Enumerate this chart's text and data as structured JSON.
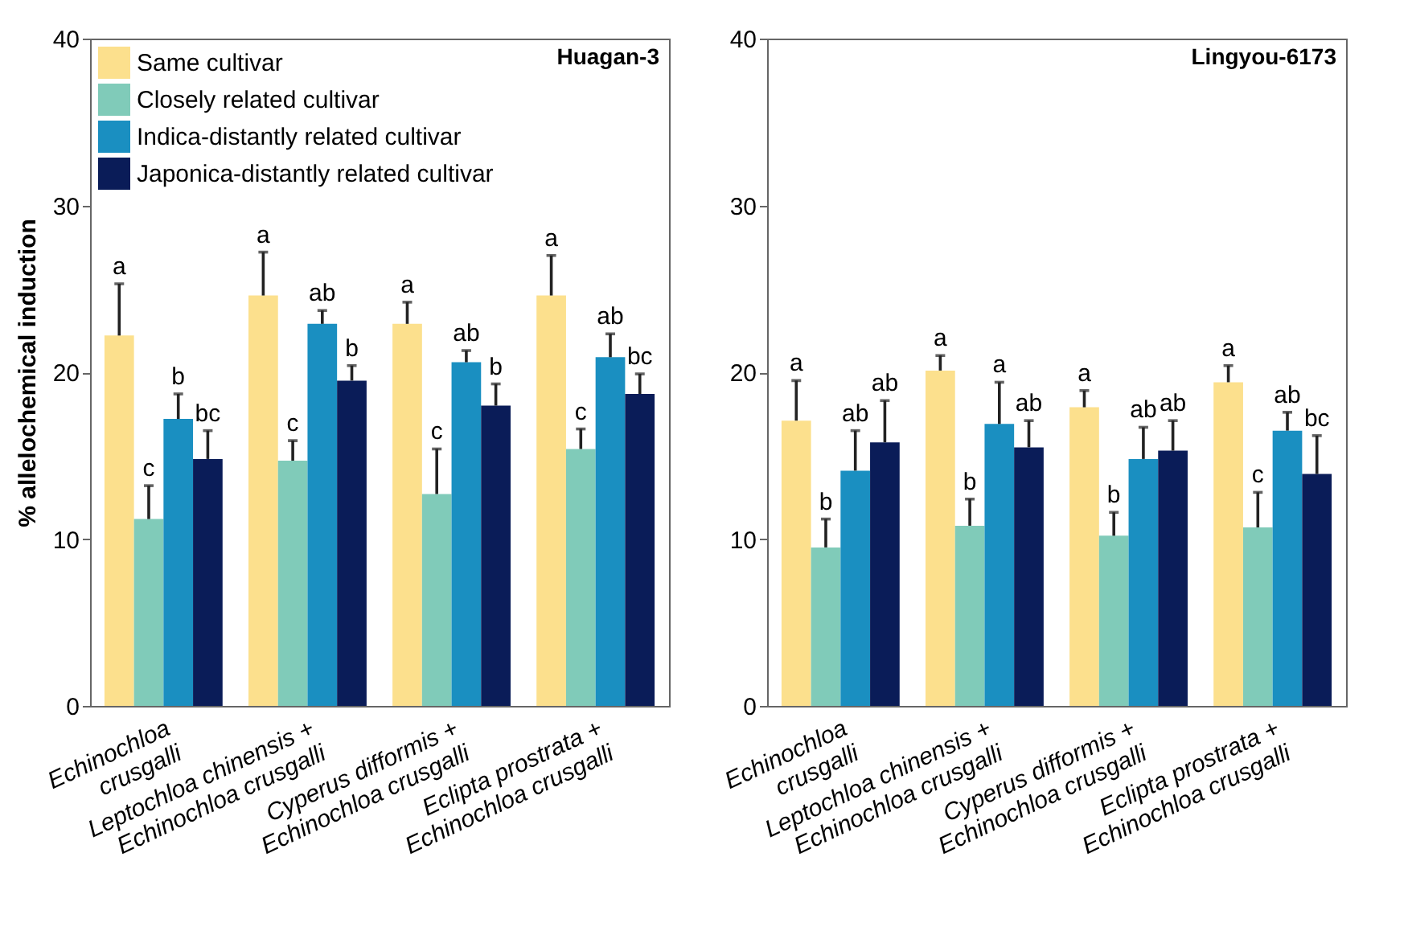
{
  "chart_data": [
    {
      "type": "bar",
      "title": "Huagan-3",
      "ylabel": "% allelochemical induction",
      "categories": [
        "Echinochloa\ncrusgalli",
        "Leptochloa chinensis +\nEchinochloa crusgalli",
        "Cyperus difformis +\nEchinochloa crusgalli",
        "Eclipta prostrata +\nEchinochloa crusgalli"
      ],
      "ylim": [
        0,
        40
      ],
      "yticks": [
        0,
        10,
        20,
        30,
        40
      ],
      "grid": false,
      "legend": "top left",
      "series": [
        {
          "name": "Same cultivar",
          "color": "#fce08d",
          "values": [
            22.2,
            24.6,
            22.9,
            24.6
          ],
          "errors": [
            [
              22.2,
              25.3
            ],
            [
              24.6,
              27.2
            ],
            [
              22.9,
              24.2
            ],
            [
              24.6,
              27.0
            ]
          ],
          "value_labels": [
            "a",
            "a",
            "a",
            "a"
          ]
        },
        {
          "name": "Closely related cultivar",
          "color": "#80cbb9",
          "values": [
            11.2,
            14.7,
            12.7,
            15.4
          ],
          "errors": [
            [
              11.2,
              13.2
            ],
            [
              14.7,
              15.9
            ],
            [
              12.7,
              15.4
            ],
            [
              15.4,
              16.6
            ]
          ],
          "value_labels": [
            "c",
            "c",
            "c",
            "c"
          ]
        },
        {
          "name": "Indica-distantly related cultivar",
          "color": "#1a8fc1",
          "values": [
            17.2,
            22.9,
            20.6,
            20.9
          ],
          "errors": [
            [
              17.2,
              18.7
            ],
            [
              22.9,
              23.7
            ],
            [
              20.6,
              21.3
            ],
            [
              20.9,
              22.3
            ]
          ],
          "value_labels": [
            "b",
            "ab",
            "ab",
            "ab"
          ]
        },
        {
          "name": "Japonica-distantly related cultivar",
          "color": "#0a1c58",
          "values": [
            14.8,
            19.5,
            18.0,
            18.7
          ],
          "errors": [
            [
              14.8,
              16.5
            ],
            [
              19.5,
              20.4
            ],
            [
              18.0,
              19.3
            ],
            [
              18.7,
              19.9
            ]
          ],
          "value_labels": [
            "bc",
            "b",
            "b",
            "bc"
          ]
        }
      ]
    },
    {
      "type": "bar",
      "title": "Lingyou-6173",
      "categories": [
        "Echinochloa\ncrusgalli",
        "Leptochloa chinensis +\nEchinochloa crusgalli",
        "Cyperus difformis +\nEchinochloa crusgalli",
        "Eclipta prostrata +\nEchinochloa crusgalli"
      ],
      "ylim": [
        0,
        40
      ],
      "yticks": [
        0,
        10,
        20,
        30,
        40
      ],
      "grid": false,
      "series": [
        {
          "color": "#fce08d",
          "values": [
            17.1,
            20.1,
            17.9,
            19.4
          ],
          "errors": [
            [
              17.1,
              19.5
            ],
            [
              20.1,
              21.0
            ],
            [
              17.9,
              18.9
            ],
            [
              19.4,
              20.4
            ]
          ],
          "value_labels": [
            "a",
            "a",
            "a",
            "a"
          ]
        },
        {
          "color": "#80cbb9",
          "values": [
            9.5,
            10.8,
            10.2,
            10.7
          ],
          "errors": [
            [
              9.5,
              11.2
            ],
            [
              10.8,
              12.4
            ],
            [
              10.2,
              11.6
            ],
            [
              10.7,
              12.8
            ]
          ],
          "value_labels": [
            "b",
            "b",
            "b",
            "c"
          ]
        },
        {
          "color": "#1a8fc1",
          "values": [
            14.1,
            16.9,
            14.8,
            16.5
          ],
          "errors": [
            [
              14.1,
              16.5
            ],
            [
              16.9,
              19.4
            ],
            [
              14.8,
              16.7
            ],
            [
              16.5,
              17.6
            ]
          ],
          "value_labels": [
            "ab",
            "a",
            "ab",
            "ab"
          ]
        },
        {
          "color": "#0a1c58",
          "values": [
            15.8,
            15.5,
            15.3,
            13.9
          ],
          "errors": [
            [
              15.8,
              18.3
            ],
            [
              15.5,
              17.1
            ],
            [
              15.3,
              17.1
            ],
            [
              13.9,
              16.2
            ]
          ],
          "value_labels": [
            "ab",
            "ab",
            "ab",
            "bc"
          ]
        }
      ]
    }
  ]
}
